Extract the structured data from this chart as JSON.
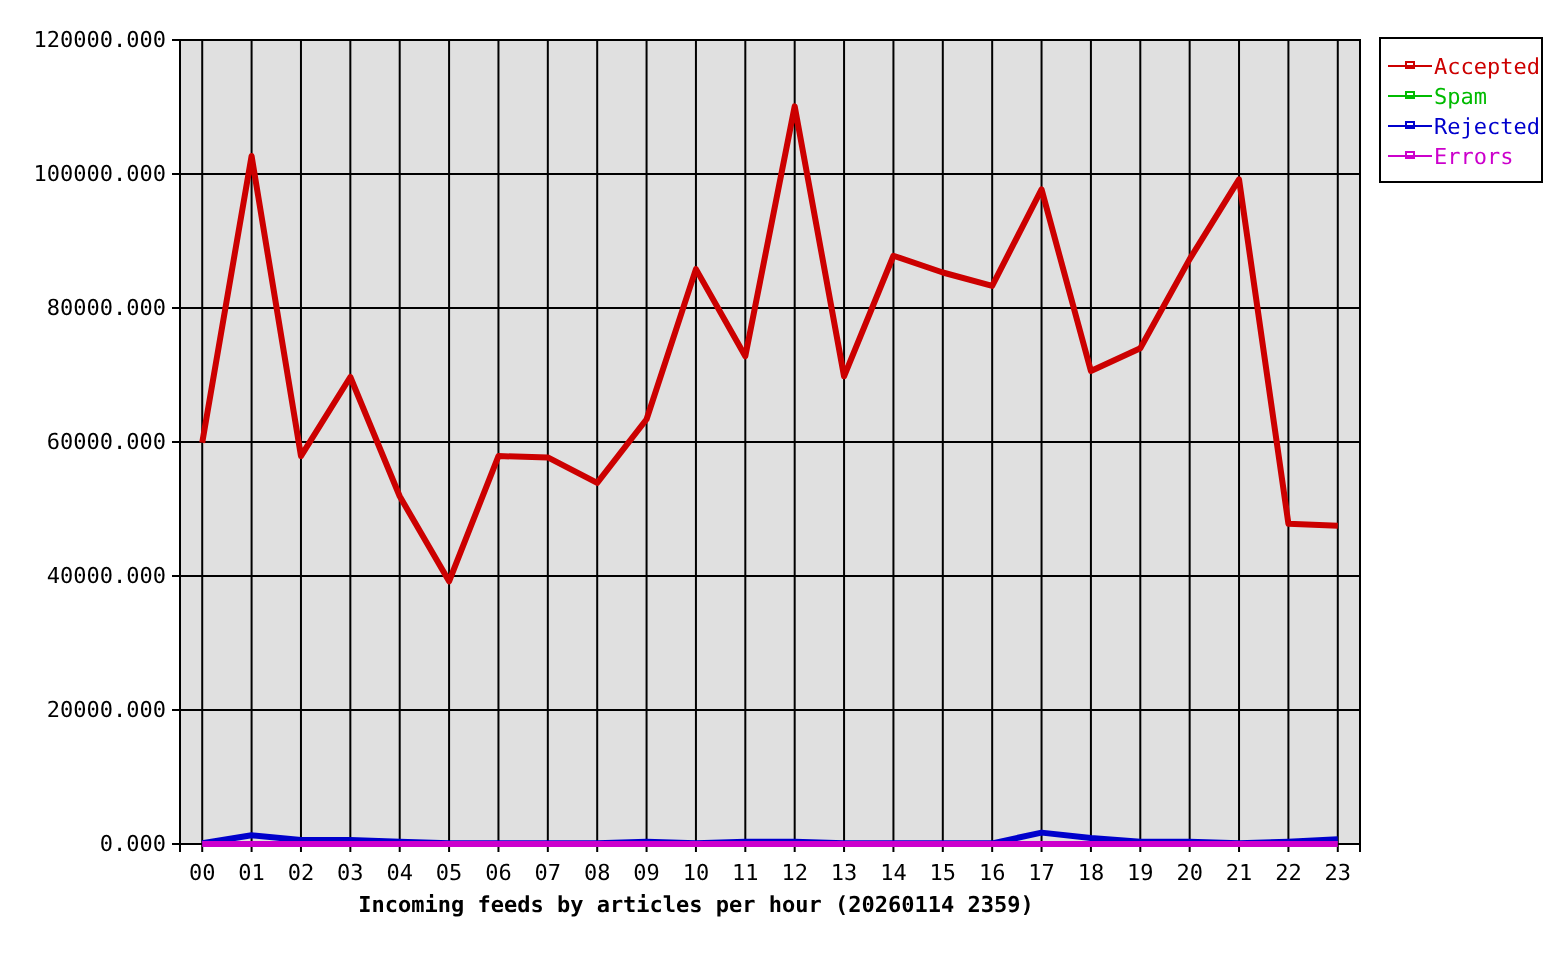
{
  "chart_data": {
    "type": "line",
    "xlabel": "Incoming feeds by articles per hour (20260114 2359)",
    "categories": [
      "00",
      "01",
      "02",
      "03",
      "04",
      "05",
      "06",
      "07",
      "08",
      "09",
      "10",
      "11",
      "12",
      "13",
      "14",
      "15",
      "16",
      "17",
      "18",
      "19",
      "20",
      "21",
      "22",
      "23"
    ],
    "series": [
      {
        "name": "Accepted",
        "color": "#cc0000",
        "values": [
          59900,
          102700,
          57900,
          69700,
          51900,
          39200,
          57900,
          57700,
          53900,
          63400,
          85800,
          72800,
          110100,
          69800,
          87800,
          85300,
          83300,
          97700,
          70600,
          74000,
          87300,
          99200,
          47800,
          47500
        ]
      },
      {
        "name": "Spam",
        "color": "#00bb00",
        "values": [
          null,
          null,
          null,
          null,
          null,
          null,
          null,
          null,
          null,
          null,
          null,
          null,
          null,
          null,
          null,
          null,
          null,
          null,
          null,
          null,
          null,
          null,
          null,
          null
        ]
      },
      {
        "name": "Rejected",
        "color": "#0000cc",
        "values": [
          100,
          1300,
          600,
          600,
          350,
          100,
          100,
          100,
          100,
          350,
          100,
          350,
          350,
          100,
          100,
          100,
          100,
          1700,
          900,
          350,
          350,
          100,
          350,
          700
        ]
      },
      {
        "name": "Errors",
        "color": "#cc00cc",
        "values": [
          0,
          0,
          0,
          0,
          0,
          0,
          0,
          0,
          0,
          0,
          0,
          0,
          0,
          0,
          0,
          0,
          0,
          0,
          0,
          0,
          0,
          0,
          0,
          0
        ]
      }
    ],
    "ylim": [
      0,
      120000
    ],
    "yticks": [
      {
        "value": 0,
        "label": "0.000"
      },
      {
        "value": 20000,
        "label": "20000.000"
      },
      {
        "value": 40000,
        "label": "40000.000"
      },
      {
        "value": 60000,
        "label": "60000.000"
      },
      {
        "value": 80000,
        "label": "80000.000"
      },
      {
        "value": 100000,
        "label": "100000.000"
      },
      {
        "value": 120000,
        "label": "120000.000"
      }
    ],
    "grid": true,
    "legend": "top right",
    "line_style": "solid",
    "marker": "none"
  }
}
